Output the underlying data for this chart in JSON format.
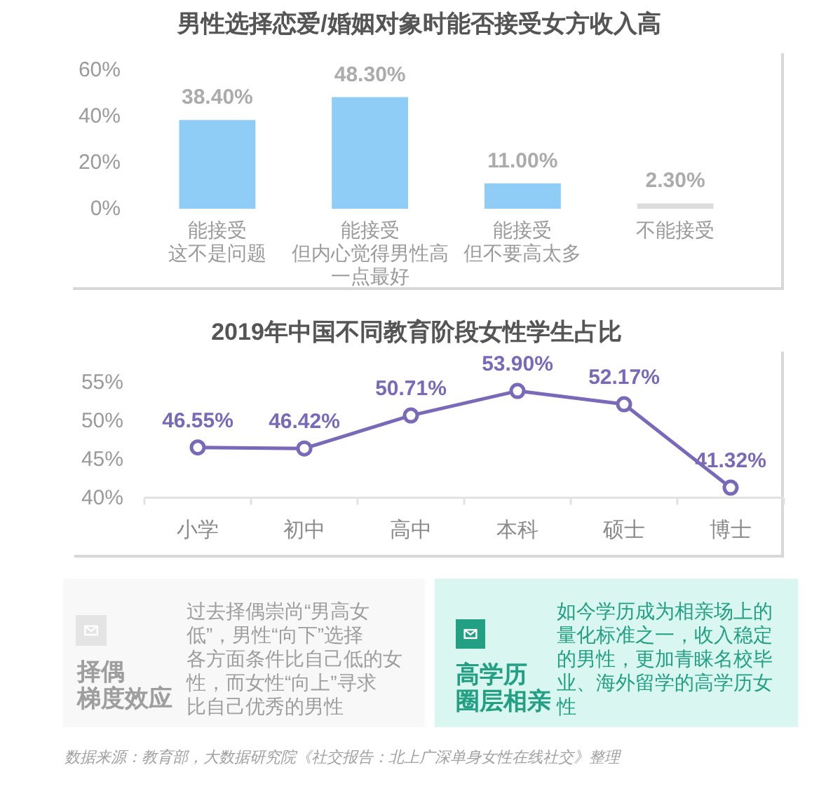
{
  "chart_data": [
    {
      "type": "bar",
      "title": "男性选择恋爱/婚姻对象时能否接受女方收入高",
      "categories": [
        "能接受这不是问题",
        "能接受但内心觉得男性高一点最好",
        "能接受但不要高太多",
        "不能接受"
      ],
      "values": [
        38.4,
        48.3,
        11.0,
        2.3
      ],
      "colors": [
        "#8fcdf7",
        "#8fcdf7",
        "#8fcdf7",
        "#dcdcdc"
      ],
      "value_labels": [
        "38.40%",
        "48.30%",
        "11.00%",
        "2.30%"
      ],
      "ylim": [
        0,
        60
      ],
      "yticks": [
        {
          "value": 0,
          "label": "0%"
        },
        {
          "value": 20,
          "label": "20%"
        },
        {
          "value": 40,
          "label": "40%"
        },
        {
          "value": 60,
          "label": "60%"
        }
      ]
    },
    {
      "type": "line",
      "title": "2019年中国不同教育阶段女性学生占比",
      "categories": [
        "小学",
        "初中",
        "高中",
        "本科",
        "硕士",
        "博士"
      ],
      "series": [
        {
          "color": "#7a68b8",
          "values": [
            46.55,
            46.42,
            50.71,
            53.9,
            52.17,
            41.32
          ],
          "value_labels": [
            "46.55%",
            "46.42%",
            "50.71%",
            "53.90%",
            "52.17%",
            "41.32%"
          ]
        }
      ],
      "ylim": [
        40,
        55
      ],
      "yticks": [
        {
          "value": 40,
          "label": "40%"
        },
        {
          "value": 45,
          "label": "45%"
        },
        {
          "value": 50,
          "label": "50%"
        },
        {
          "value": 55,
          "label": "55%"
        }
      ],
      "marker": "circle"
    },
    {
      "type": "other",
      "title": "择偶梯度效应",
      "color": "#9e9e9e",
      "annotations": [
        "过去择偶崇尚“男高女低”，男性“向下”选择各方面条件比自己低的女性，而女性“向上”寻求比自己优秀的男性"
      ]
    },
    {
      "type": "other",
      "title": "高学历圈层相亲",
      "color": "#23a083",
      "annotations": [
        "如今学历成为相亲场上的量化标准之一，收入稳定的男性，更加青睐名校毕业、海外留学的高学历女性",
        "数据来源：教育部，大数据研究院《社交报告：北上广深单身女性在线社交》整理"
      ]
    }
  ]
}
